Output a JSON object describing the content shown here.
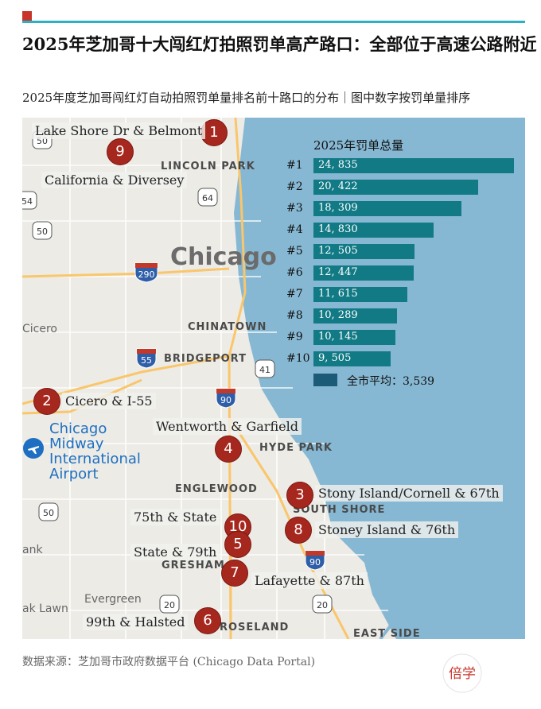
{
  "header": {
    "title": "2025年芝加哥十大闯红灯拍照罚单高产路口：全部位于高速公路附近",
    "subtitle": "2025年度芝加哥闯红灯自动拍照罚单量排名前十路口的分布｜图中数字按罚单量排序"
  },
  "map": {
    "city_label": "Chicago",
    "places": {
      "lincoln_park": "LINCOLN PARK",
      "chinatown": "CHINATOWN",
      "bridgeport": "BRIDGEPORT",
      "hyde_park": "HYDE PARK",
      "englewood": "ENGLEWOOD",
      "south_shore": "SOUTH SHORE",
      "gresham": "GRESHAM",
      "roseland": "ROSELAND",
      "east_side": "EAST SIDE",
      "cicero": "Cicero",
      "evergreen": "Evergreen",
      "oak_lawn": "ak Lawn",
      "bank": "ank"
    },
    "airport": {
      "line1": "Chicago",
      "line2": "Midway",
      "line3": "International",
      "line4": "Airport"
    },
    "shields": {
      "s50a": "50",
      "s64": "64",
      "s54": "54",
      "s50b": "50",
      "s290": "290",
      "s55": "55",
      "s41": "41",
      "s90a": "90",
      "s50c": "50",
      "s90b": "90",
      "s20a": "20",
      "s20b": "20"
    }
  },
  "intersections": [
    {
      "rank": "1",
      "name": "Lake Shore Dr & Belmont"
    },
    {
      "rank": "2",
      "name": "Cicero & I-55"
    },
    {
      "rank": "3",
      "name": "Stony Island/Cornell & 67th"
    },
    {
      "rank": "4",
      "name": "Wentworth & Garfield"
    },
    {
      "rank": "5",
      "name": "State & 79th"
    },
    {
      "rank": "6",
      "name": "99th & Halsted"
    },
    {
      "rank": "7",
      "name": "Lafayette & 87th"
    },
    {
      "rank": "8",
      "name": "Stoney Island & 76th"
    },
    {
      "rank": "9",
      "name": "California & Diversey"
    },
    {
      "rank": "10",
      "name": "75th & State"
    }
  ],
  "chart_data": {
    "type": "bar",
    "title": "2025年罚单总量",
    "categories": [
      "#1",
      "#2",
      "#3",
      "#4",
      "#5",
      "#6",
      "#7",
      "#8",
      "#9",
      "#10"
    ],
    "values": [
      24835,
      20422,
      18309,
      14830,
      12505,
      12447,
      11615,
      10289,
      10145,
      9505
    ],
    "value_labels": [
      "24, 835",
      "20, 422",
      "18, 309",
      "14, 830",
      "12, 505",
      "12, 447",
      "11, 615",
      "10, 289",
      "10, 145",
      "9, 505"
    ],
    "xlim": [
      0,
      25000
    ],
    "reference": {
      "label": "全市平均：3,539",
      "value": 3539
    },
    "colors": {
      "bar": "#127a85",
      "reference": "#1c5b78"
    }
  },
  "footer": {
    "source": "数据来源：芝加哥市政府数据平台 (Chicago Data Portal)",
    "logo_text": "倍学"
  }
}
